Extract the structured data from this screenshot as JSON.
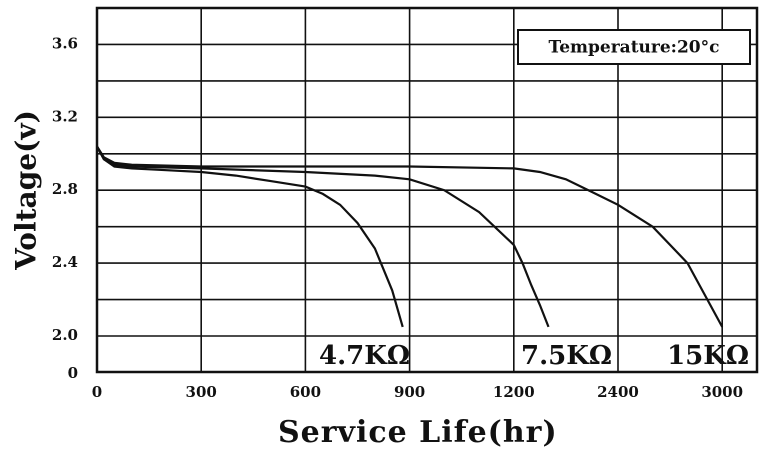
{
  "chart_data": {
    "type": "line",
    "x_label": "Service Life(hr)",
    "y_label": "Voltage(v)",
    "annotation": "Temperature:20°c",
    "xlim": [
      0,
      3200
    ],
    "xticks": [
      0,
      300,
      600,
      900,
      1200,
      2400,
      3000
    ],
    "ylim": [
      0,
      3.8
    ],
    "yticks": [
      0,
      {
        "value": 2.0,
        "label": "2.0"
      },
      2.4,
      2.8,
      3.2,
      3.6
    ],
    "ygrid_minor": [
      2.2,
      2.6,
      3.0,
      3.4
    ],
    "grid": true,
    "series": [
      {
        "name": "4.7KΩ",
        "color": "#111111",
        "x": [
          0,
          20,
          50,
          100,
          200,
          300,
          400,
          500,
          600,
          650,
          700,
          750,
          800,
          850,
          880
        ],
        "values": [
          3.04,
          2.97,
          2.93,
          2.92,
          2.91,
          2.9,
          2.88,
          2.85,
          2.82,
          2.78,
          2.72,
          2.62,
          2.48,
          2.25,
          2.05
        ]
      },
      {
        "name": "7.5KΩ",
        "color": "#111111",
        "x": [
          0,
          20,
          50,
          100,
          300,
          600,
          800,
          900,
          1000,
          1100,
          1200,
          1300,
          1400,
          1500,
          1600
        ],
        "values": [
          3.04,
          2.97,
          2.94,
          2.93,
          2.92,
          2.9,
          2.88,
          2.86,
          2.8,
          2.68,
          2.5,
          2.4,
          2.28,
          2.17,
          2.05
        ]
      },
      {
        "name": "15KΩ",
        "color": "#111111",
        "x": [
          0,
          20,
          50,
          100,
          300,
          600,
          900,
          1200,
          1500,
          1800,
          2100,
          2400,
          2600,
          2800,
          3000
        ],
        "values": [
          3.04,
          2.98,
          2.95,
          2.94,
          2.93,
          2.93,
          2.93,
          2.92,
          2.9,
          2.86,
          2.79,
          2.72,
          2.6,
          2.4,
          2.05
        ]
      }
    ]
  }
}
